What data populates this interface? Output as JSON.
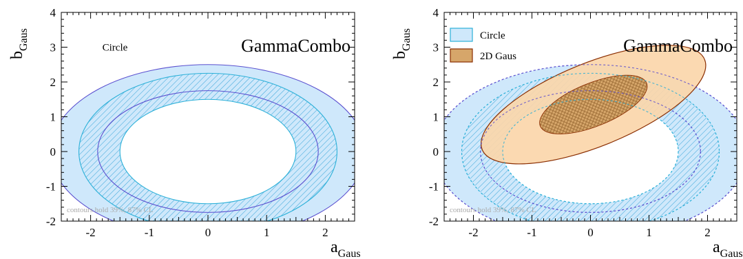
{
  "chart_data": [
    {
      "type": "contour",
      "brand": "GammaCombo",
      "xlabel": "a",
      "xlabel_sub": "Gaus",
      "ylabel": "b",
      "ylabel_sub": "Gaus",
      "xlim": [
        -2.5,
        2.5
      ],
      "ylim": [
        -2,
        4
      ],
      "xticks": [
        "-2",
        "-1",
        "0",
        "1",
        "2"
      ],
      "yticks": [
        "-2",
        "-1",
        "0",
        "1",
        "2",
        "3",
        "4"
      ],
      "footnote": "contours hold 39%, 87% CL",
      "text_label": "Circle",
      "legend": null,
      "series": [
        {
          "name": "Circle",
          "shape": "ring",
          "center": [
            0,
            0
          ],
          "contours": [
            {
              "cl": "39%",
              "inner": {
                "rx": 1.5,
                "ry": 1.5
              },
              "outer": {
                "rx": 2.2,
                "ry": 2.25
              }
            },
            {
              "cl": "87%",
              "inner": {
                "rx": 1.88,
                "ry": 1.75
              },
              "outer": {
                "rx": 2.68,
                "ry": 2.5
              }
            }
          ],
          "fill": "#cfe8fb",
          "hatch": "#3aa6d9",
          "line": "#5a4fcf",
          "line2": "#2bb0d8"
        }
      ]
    },
    {
      "type": "contour",
      "brand": "GammaCombo",
      "xlabel": "a",
      "xlabel_sub": "Gaus",
      "ylabel": "b",
      "ylabel_sub": "Gaus",
      "xlim": [
        -2.5,
        2.5
      ],
      "ylim": [
        -2,
        4
      ],
      "xticks": [
        "-2",
        "-1",
        "0",
        "1",
        "2"
      ],
      "yticks": [
        "-2",
        "-1",
        "0",
        "1",
        "2",
        "3",
        "4"
      ],
      "footnote": "contours hold 39%, 87% CL",
      "legend": {
        "position": "top-left",
        "entries": [
          "Circle",
          "2D Gaus"
        ]
      },
      "series": [
        {
          "name": "Circle",
          "shape": "ring",
          "center": [
            0,
            0
          ],
          "contours": [
            {
              "cl": "39%",
              "inner": {
                "rx": 1.5,
                "ry": 1.5
              },
              "outer": {
                "rx": 2.2,
                "ry": 2.25
              }
            },
            {
              "cl": "87%",
              "inner": {
                "rx": 1.88,
                "ry": 1.75
              },
              "outer": {
                "rx": 2.68,
                "ry": 2.5
              }
            }
          ],
          "fill": "#cfe8fb",
          "hatch": "#3aa6d9",
          "line": "#5a4fcf",
          "line2": "#2bb0d8"
        },
        {
          "name": "2D Gaus",
          "shape": "ellipse",
          "center": [
            0.05,
            1.35
          ],
          "angle_deg": 22,
          "contours": [
            {
              "cl": "39%",
              "rx": 0.98,
              "ry": 0.62
            },
            {
              "cl": "87%",
              "rx": 2.05,
              "ry": 1.2
            }
          ],
          "fill": "#fbd6aa",
          "fill_inner": "#d6a66a",
          "hatch": "#9a6a34",
          "line": "#8a2d00"
        }
      ]
    }
  ]
}
